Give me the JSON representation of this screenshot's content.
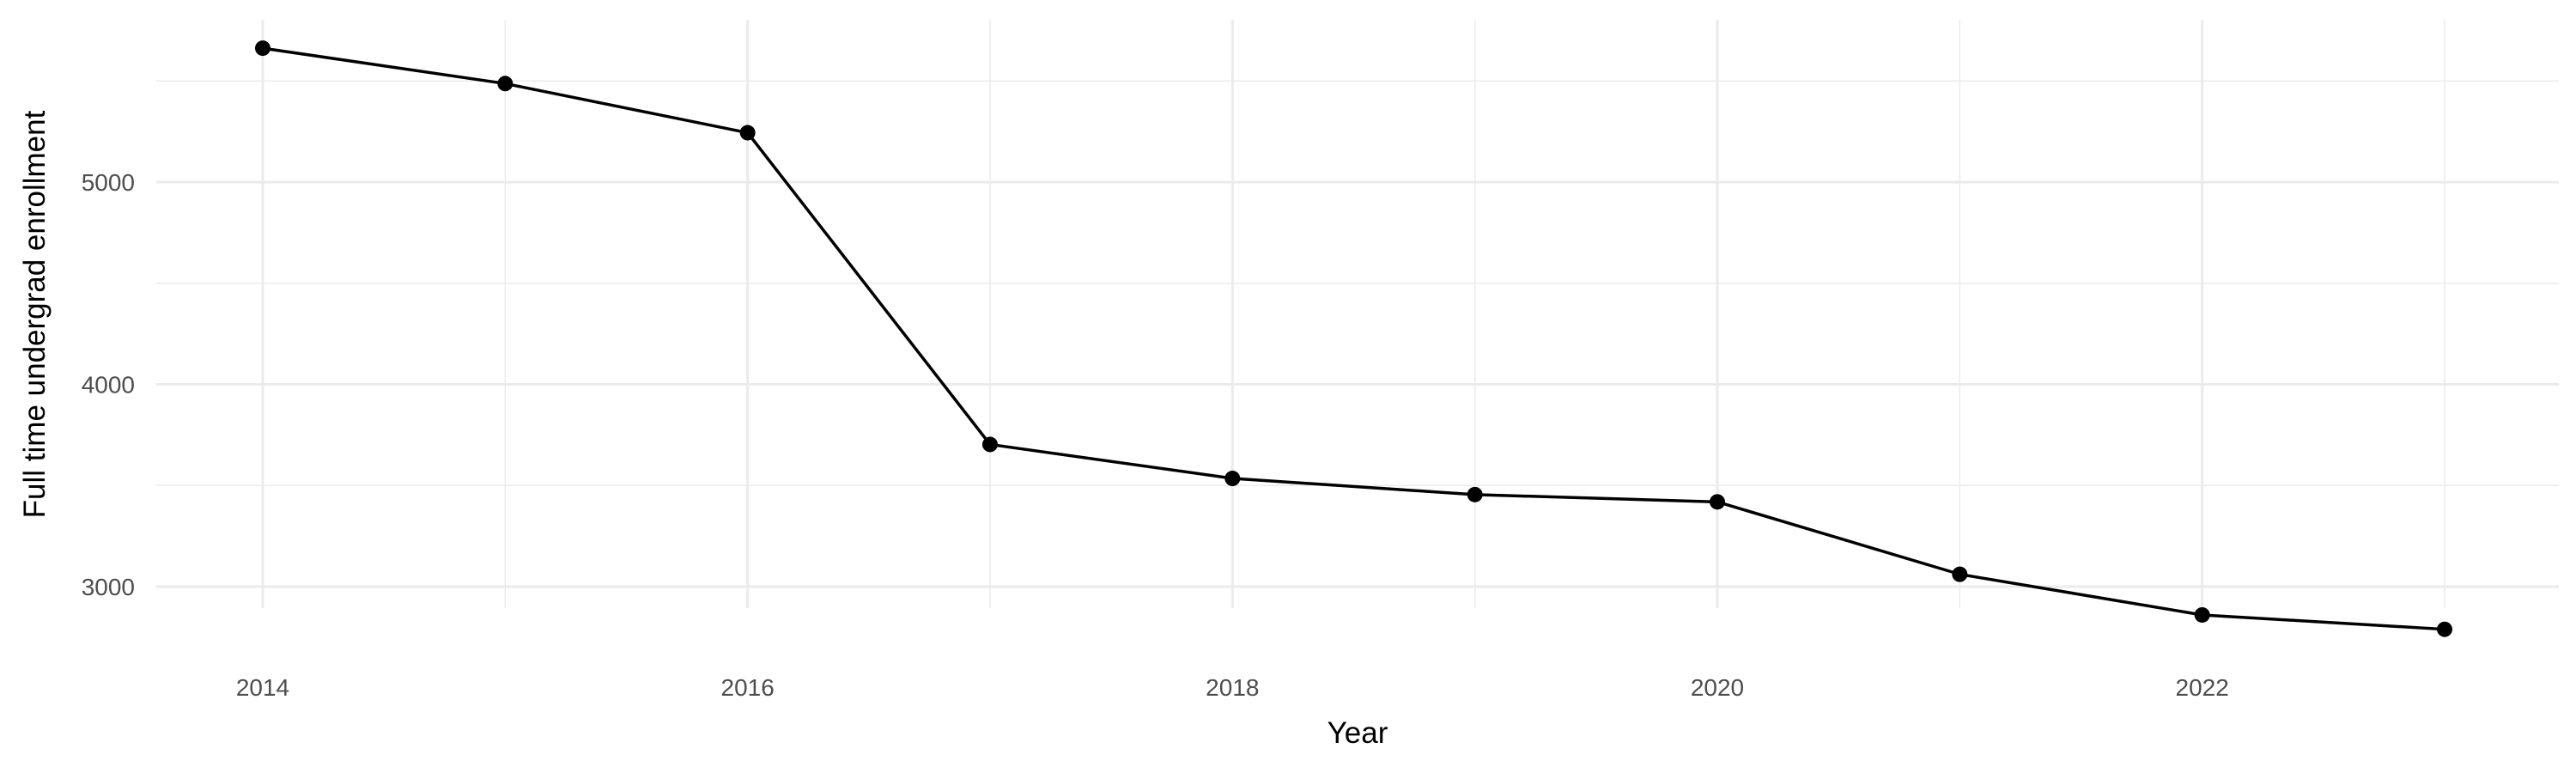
{
  "chart_data": {
    "type": "line",
    "title": "",
    "xlabel": "Year",
    "ylabel": "Full time undergrad enrollment",
    "x": [
      2014,
      2015,
      2016,
      2017,
      2018,
      2019,
      2020,
      2021,
      2022,
      2023
    ],
    "series": [
      {
        "values": [
          5662,
          5487,
          5244,
          3703,
          3535,
          3455,
          3419,
          3061,
          2860,
          2789
        ],
        "color": "#000000"
      }
    ],
    "x_ticks": [
      "2014",
      "2016",
      "2018",
      "2020",
      "2022"
    ],
    "y_ticks": [
      "3000",
      "4000",
      "5000"
    ],
    "xlim": [
      2013.55,
      2023.45
    ],
    "ylim": [
      2690,
      5810
    ],
    "grid": true,
    "legend": "none",
    "colors": {
      "grid": "#ebebeb",
      "line": "#000000",
      "tick_text": "#4d4d4d"
    }
  }
}
